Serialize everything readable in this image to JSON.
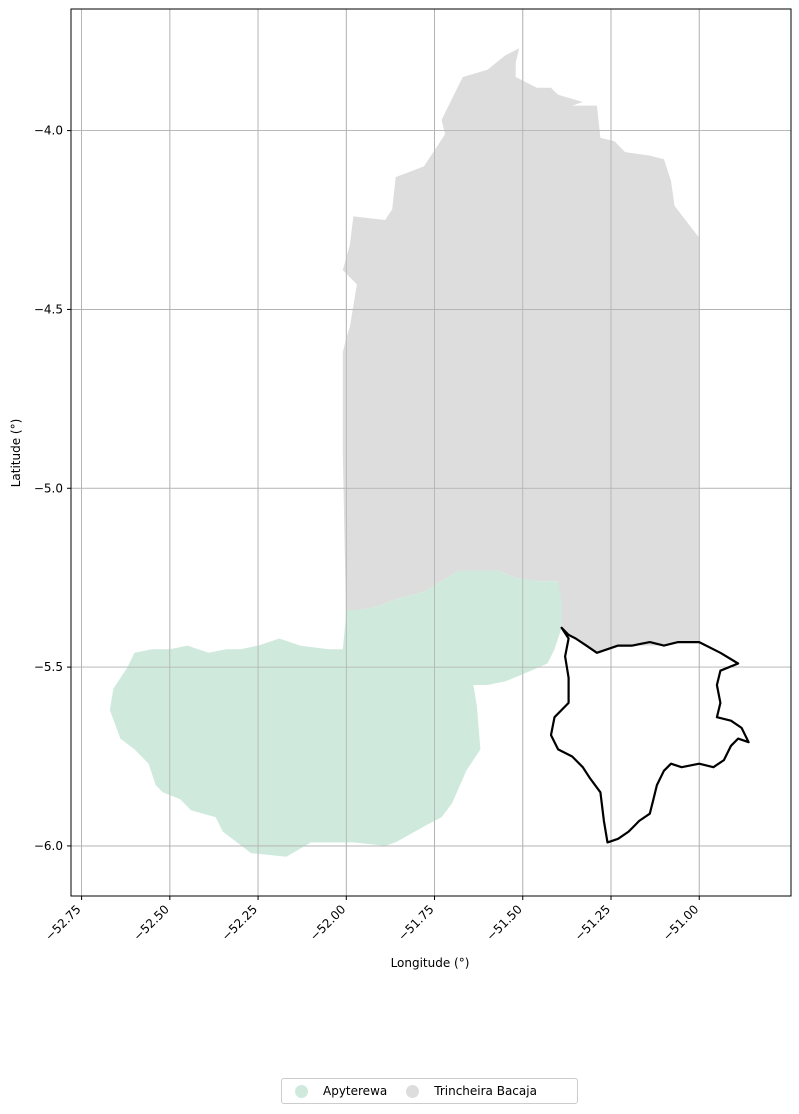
{
  "chart_data": {
    "type": "map",
    "xlabel": "Longitude (°)",
    "ylabel": "Latitude (°)",
    "xlim": [
      -52.78,
      -50.74
    ],
    "ylim": [
      -6.14,
      -3.66
    ],
    "xticks": [
      -52.75,
      -52.5,
      -52.25,
      -52.0,
      -51.75,
      -51.5,
      -51.25,
      -51.0
    ],
    "xtick_labels": [
      "−52.75",
      "−52.50",
      "−52.25",
      "−52.00",
      "−51.75",
      "−51.50",
      "−51.25",
      "−51.00"
    ],
    "yticks": [
      -4.0,
      -4.5,
      -5.0,
      -5.5,
      -6.0
    ],
    "ytick_labels": [
      "−4.0",
      "−4.5",
      "−5.0",
      "−5.5",
      "−6.0"
    ],
    "grid": true,
    "legend_position": "bottom-center",
    "legend": [
      {
        "label": "Apyterewa",
        "color": "#cfeadd"
      },
      {
        "label": "Trincheira Bacaja",
        "color": "#dddddd"
      }
    ],
    "regions": [
      {
        "name": "Trincheira Bacaja",
        "color": "#dddddd",
        "coords": [
          [
            -51.51,
            -3.77
          ],
          [
            -51.52,
            -3.81
          ],
          [
            -51.52,
            -3.85
          ],
          [
            -51.46,
            -3.88
          ],
          [
            -51.42,
            -3.88
          ],
          [
            -51.4,
            -3.9
          ],
          [
            -51.33,
            -3.92
          ],
          [
            -51.36,
            -3.93
          ],
          [
            -51.29,
            -3.93
          ],
          [
            -51.28,
            -4.02
          ],
          [
            -51.24,
            -4.03
          ],
          [
            -51.21,
            -4.06
          ],
          [
            -51.14,
            -4.07
          ],
          [
            -51.1,
            -4.08
          ],
          [
            -51.08,
            -4.14
          ],
          [
            -51.07,
            -4.21
          ],
          [
            -51.0,
            -4.3
          ],
          [
            -51.0,
            -5.43
          ],
          [
            -51.07,
            -5.43
          ],
          [
            -51.12,
            -5.44
          ],
          [
            -51.19,
            -5.44
          ],
          [
            -51.23,
            -5.44
          ],
          [
            -51.25,
            -5.45
          ],
          [
            -51.29,
            -5.46
          ],
          [
            -51.33,
            -5.43
          ],
          [
            -51.37,
            -5.41
          ],
          [
            -51.39,
            -5.39
          ],
          [
            -51.39,
            -5.33
          ],
          [
            -51.41,
            -5.27
          ],
          [
            -51.4,
            -5.26
          ],
          [
            -51.46,
            -5.26
          ],
          [
            -51.52,
            -5.25
          ],
          [
            -51.57,
            -5.23
          ],
          [
            -51.63,
            -5.23
          ],
          [
            -51.68,
            -5.23
          ],
          [
            -51.78,
            -5.29
          ],
          [
            -51.86,
            -5.31
          ],
          [
            -51.91,
            -5.33
          ],
          [
            -51.96,
            -5.34
          ],
          [
            -52.0,
            -5.36
          ],
          [
            -52.0,
            -5.39
          ],
          [
            -52.01,
            -4.9
          ],
          [
            -52.01,
            -4.62
          ],
          [
            -52.0,
            -4.58
          ],
          [
            -51.99,
            -4.55
          ],
          [
            -51.97,
            -4.43
          ],
          [
            -52.01,
            -4.39
          ],
          [
            -51.99,
            -4.32
          ],
          [
            -51.98,
            -4.24
          ],
          [
            -51.89,
            -4.25
          ],
          [
            -51.87,
            -4.22
          ],
          [
            -51.86,
            -4.13
          ],
          [
            -51.78,
            -4.1
          ],
          [
            -51.72,
            -4.01
          ],
          [
            -51.73,
            -3.97
          ],
          [
            -51.71,
            -3.93
          ],
          [
            -51.67,
            -3.85
          ],
          [
            -51.6,
            -3.83
          ],
          [
            -51.55,
            -3.79
          ]
        ]
      },
      {
        "name": "Apyterewa",
        "color": "#cfeadd",
        "coords": [
          [
            -52.0,
            -5.34
          ],
          [
            -51.96,
            -5.34
          ],
          [
            -51.91,
            -5.33
          ],
          [
            -51.86,
            -5.31
          ],
          [
            -51.78,
            -5.29
          ],
          [
            -51.68,
            -5.23
          ],
          [
            -51.63,
            -5.23
          ],
          [
            -51.57,
            -5.23
          ],
          [
            -51.52,
            -5.25
          ],
          [
            -51.46,
            -5.26
          ],
          [
            -51.4,
            -5.26
          ],
          [
            -51.39,
            -5.32
          ],
          [
            -51.39,
            -5.39
          ],
          [
            -51.41,
            -5.45
          ],
          [
            -51.43,
            -5.49
          ],
          [
            -51.5,
            -5.52
          ],
          [
            -51.55,
            -5.54
          ],
          [
            -51.6,
            -5.55
          ],
          [
            -51.64,
            -5.55
          ],
          [
            -51.63,
            -5.61
          ],
          [
            -51.62,
            -5.73
          ],
          [
            -51.66,
            -5.79
          ],
          [
            -51.7,
            -5.88
          ],
          [
            -51.73,
            -5.92
          ],
          [
            -51.77,
            -5.94
          ],
          [
            -51.86,
            -5.99
          ],
          [
            -51.89,
            -6.0
          ],
          [
            -51.98,
            -5.99
          ],
          [
            -52.05,
            -5.99
          ],
          [
            -52.1,
            -5.99
          ],
          [
            -52.17,
            -6.03
          ],
          [
            -52.27,
            -6.02
          ],
          [
            -52.31,
            -5.99
          ],
          [
            -52.35,
            -5.96
          ],
          [
            -52.37,
            -5.92
          ],
          [
            -52.44,
            -5.9
          ],
          [
            -52.47,
            -5.87
          ],
          [
            -52.52,
            -5.85
          ],
          [
            -52.54,
            -5.83
          ],
          [
            -52.56,
            -5.77
          ],
          [
            -52.6,
            -5.73
          ],
          [
            -52.64,
            -5.7
          ],
          [
            -52.67,
            -5.62
          ],
          [
            -52.66,
            -5.56
          ],
          [
            -52.62,
            -5.5
          ],
          [
            -52.6,
            -5.46
          ],
          [
            -52.55,
            -5.45
          ],
          [
            -52.5,
            -5.45
          ],
          [
            -52.45,
            -5.44
          ],
          [
            -52.39,
            -5.46
          ],
          [
            -52.34,
            -5.45
          ],
          [
            -52.3,
            -5.45
          ],
          [
            -52.25,
            -5.44
          ],
          [
            -52.19,
            -5.42
          ],
          [
            -52.13,
            -5.44
          ],
          [
            -52.05,
            -5.45
          ],
          [
            -52.01,
            -5.45
          ],
          [
            -52.0,
            -5.35
          ]
        ]
      },
      {
        "name": "outlined area",
        "color": "none",
        "stroke": "#000000",
        "coords": [
          [
            -51.39,
            -5.39
          ],
          [
            -51.37,
            -5.41
          ],
          [
            -51.35,
            -5.42
          ],
          [
            -51.32,
            -5.44
          ],
          [
            -51.29,
            -5.46
          ],
          [
            -51.26,
            -5.45
          ],
          [
            -51.23,
            -5.44
          ],
          [
            -51.19,
            -5.44
          ],
          [
            -51.14,
            -5.43
          ],
          [
            -51.1,
            -5.44
          ],
          [
            -51.06,
            -5.43
          ],
          [
            -51.0,
            -5.43
          ],
          [
            -50.94,
            -5.46
          ],
          [
            -50.89,
            -5.49
          ],
          [
            -50.94,
            -5.51
          ],
          [
            -50.95,
            -5.55
          ],
          [
            -50.94,
            -5.6
          ],
          [
            -50.95,
            -5.64
          ],
          [
            -50.91,
            -5.65
          ],
          [
            -50.88,
            -5.67
          ],
          [
            -50.86,
            -5.71
          ],
          [
            -50.89,
            -5.7
          ],
          [
            -50.91,
            -5.72
          ],
          [
            -50.93,
            -5.76
          ],
          [
            -50.96,
            -5.78
          ],
          [
            -51.0,
            -5.77
          ],
          [
            -51.05,
            -5.78
          ],
          [
            -51.08,
            -5.77
          ],
          [
            -51.1,
            -5.79
          ],
          [
            -51.12,
            -5.83
          ],
          [
            -51.13,
            -5.87
          ],
          [
            -51.14,
            -5.91
          ],
          [
            -51.17,
            -5.93
          ],
          [
            -51.2,
            -5.96
          ],
          [
            -51.23,
            -5.98
          ],
          [
            -51.26,
            -5.99
          ],
          [
            -51.27,
            -5.93
          ],
          [
            -51.28,
            -5.85
          ],
          [
            -51.31,
            -5.81
          ],
          [
            -51.33,
            -5.78
          ],
          [
            -51.36,
            -5.75
          ],
          [
            -51.4,
            -5.73
          ],
          [
            -51.42,
            -5.69
          ],
          [
            -51.41,
            -5.64
          ],
          [
            -51.37,
            -5.6
          ],
          [
            -51.37,
            -5.53
          ],
          [
            -51.38,
            -5.47
          ],
          [
            -51.37,
            -5.42
          ]
        ]
      }
    ]
  }
}
